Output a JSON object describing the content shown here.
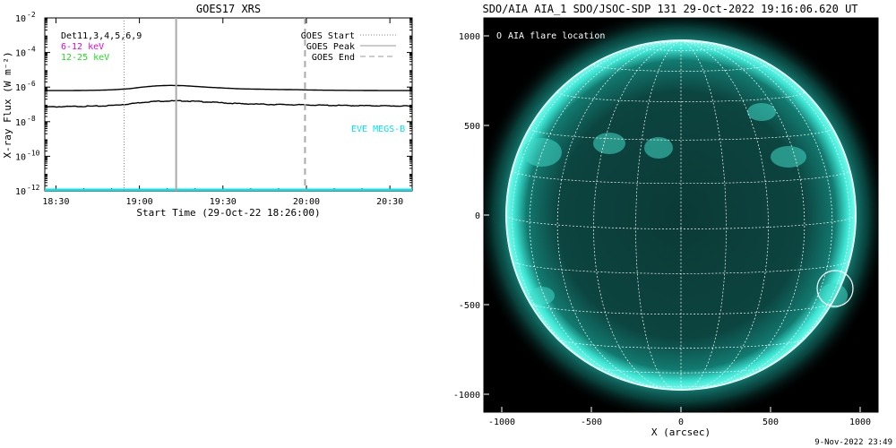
{
  "footer_timestamp": "9-Nov-2022 23:49",
  "colors": {
    "goes_long": "#000000",
    "goes_short": "#000000",
    "eve": "#00e5ee",
    "band_6_12": "#e600e6",
    "band_12_25": "#22dd22",
    "sun_glow": "#1fd0c0",
    "sun_disk": "#07322f",
    "grid": "#ffffff"
  },
  "goes_panel": {
    "title": "GOES17 XRS",
    "legend_dets": "Det11,3,4,5,6,9",
    "legend_6_12": "6-12 keV",
    "legend_12_25": "12-25 keV",
    "legend_start": "GOES Start",
    "legend_peak": "GOES Peak",
    "legend_end": "GOES End",
    "eve_label": "EVE MEGS-B"
  },
  "aia_panel": {
    "title": "SDO/AIA AIA_1 SDO/JSOC-SDP 131 29-Oct-2022 19:16:06.620 UT",
    "legend": "AIA flare location",
    "legend_symbol": "O"
  },
  "chart_data": [
    {
      "type": "line",
      "title": "GOES17 XRS",
      "xlabel": "Start Time (29-Oct-22 18:26:00)",
      "ylabel": "X-ray Flux (W m⁻²)",
      "x_unit": "minutes after 18:26:00",
      "xlim": [
        0,
        132
      ],
      "ylim_log10": [
        -12,
        -2
      ],
      "y_scale": "log",
      "x_ticks": [
        {
          "minute": 4,
          "label": "18:30"
        },
        {
          "minute": 34,
          "label": "19:00"
        },
        {
          "minute": 64,
          "label": "19:30"
        },
        {
          "minute": 94,
          "label": "20:00"
        },
        {
          "minute": 124,
          "label": "20:30"
        }
      ],
      "y_ticks": [
        {
          "exp": -12,
          "label": "10",
          "sup": "-12"
        },
        {
          "exp": -10,
          "label": "10",
          "sup": "-10"
        },
        {
          "exp": -8,
          "label": "10",
          "sup": "-8"
        },
        {
          "exp": -6,
          "label": "10",
          "sup": "-6"
        },
        {
          "exp": -4,
          "label": "10",
          "sup": "-4"
        },
        {
          "exp": -2,
          "label": "10",
          "sup": "-2"
        }
      ],
      "series": [
        {
          "key": "long",
          "x": [
            0,
            10,
            20,
            25,
            30,
            35,
            40,
            45,
            50,
            55,
            60,
            65,
            70,
            80,
            90,
            100,
            110,
            120,
            132
          ],
          "log_flux": [
            -6.2,
            -6.2,
            -6.18,
            -6.15,
            -6.1,
            -6.0,
            -5.93,
            -5.9,
            -5.92,
            -5.97,
            -6.02,
            -6.06,
            -6.1,
            -6.13,
            -6.15,
            -6.18,
            -6.19,
            -6.2,
            -6.2
          ]
        },
        {
          "key": "short",
          "x": [
            0,
            10,
            20,
            25,
            30,
            35,
            40,
            45,
            50,
            55,
            60,
            65,
            70,
            80,
            90,
            100,
            110,
            120,
            132
          ],
          "log_flux": [
            -7.15,
            -7.12,
            -7.1,
            -7.05,
            -6.98,
            -6.88,
            -6.82,
            -6.8,
            -6.8,
            -6.83,
            -6.87,
            -6.92,
            -6.96,
            -7.0,
            -7.02,
            -7.05,
            -7.07,
            -7.08,
            -7.1
          ]
        },
        {
          "key": "eve",
          "x": [
            0,
            132
          ],
          "log_flux": [
            -11.95,
            -11.95
          ]
        }
      ],
      "markers": {
        "start_minute": 28.5,
        "peak_minute": 47.2,
        "end_minute": 93.5
      }
    },
    {
      "type": "scatter",
      "title": "SDO/AIA AIA_1 SDO/JSOC-SDP 131 29-Oct-2022 19:16:06.620 UT",
      "xlabel": "X (arcsec)",
      "ylabel": "",
      "xlim": [
        -1100,
        1100
      ],
      "ylim": [
        -1100,
        1100
      ],
      "x_ticks": [
        -1000,
        -500,
        0,
        500,
        1000
      ],
      "y_ticks": [
        -1000,
        -500,
        0,
        500,
        1000
      ],
      "grid": true,
      "solar_radius_arcsec": 975,
      "flare_location": {
        "x": 860,
        "y": -410,
        "radius_arcsec": 100
      }
    }
  ]
}
